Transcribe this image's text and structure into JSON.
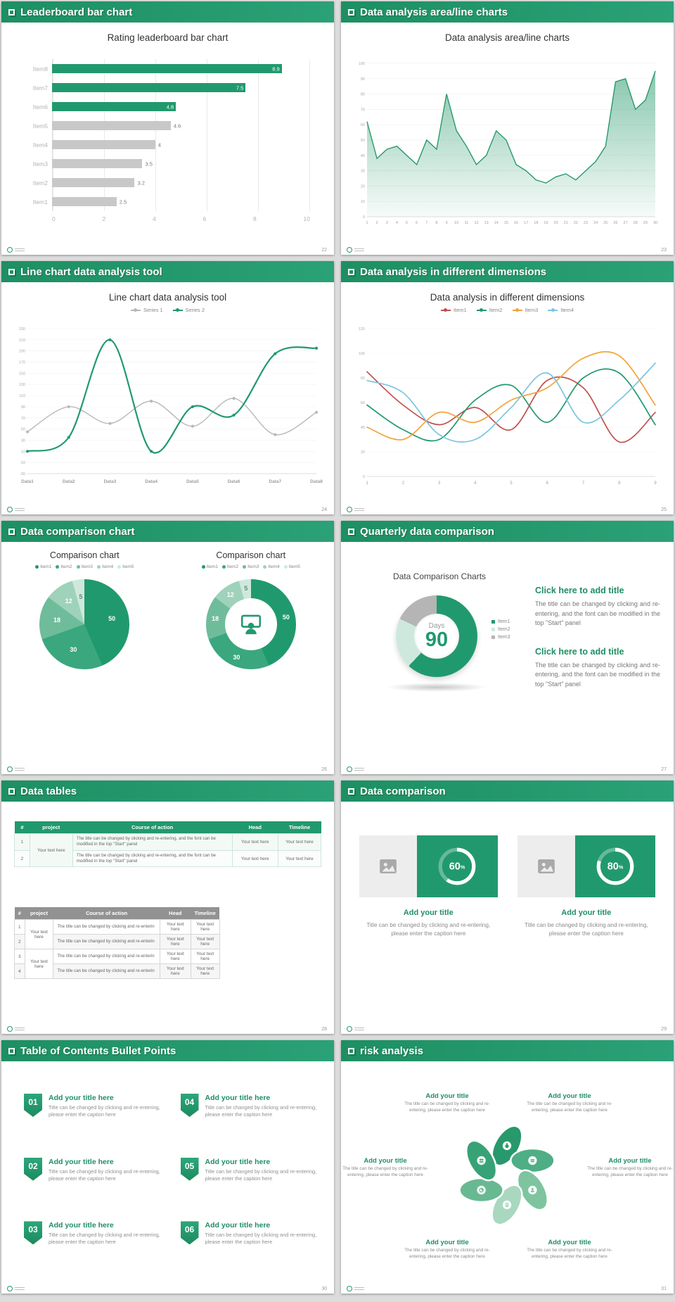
{
  "slides": {
    "s1": {
      "header": "Leaderboard bar chart",
      "page": "22"
    },
    "s2": {
      "header": "Data analysis area/line charts",
      "page": "23"
    },
    "s3": {
      "header": "Line chart data analysis tool",
      "page": "24"
    },
    "s4": {
      "header": "Data analysis in different dimensions",
      "page": "25"
    },
    "s5": {
      "header": "Data comparison chart",
      "page": "26"
    },
    "s6": {
      "header": "Quarterly data comparison",
      "page": "27",
      "chart_title": "Data Comparison Charts",
      "blocks": [
        {
          "title": "Click here to add title",
          "body": "The title can be changed by clicking and re-entering, and the font can be modified in the top \"Start\" panel"
        },
        {
          "title": "Click here to add title",
          "body": "The title can be changed by clicking and re-entering, and the font can be modified in the top \"Start\" panel"
        }
      ]
    },
    "s7": {
      "header": "Data tables",
      "page": "28",
      "table1": {
        "headers": [
          "#",
          "project",
          "Course of action",
          "Head",
          "Timeline"
        ],
        "groups": [
          {
            "project": "Your text here",
            "rows": [
              {
                "num": "1",
                "course": "The title can be changed by clicking and re-entering, and the font can be modified in the top \"Start\" panel",
                "head": "Your text here",
                "timeline": "Your text here"
              },
              {
                "num": "2",
                "course": "The title can be changed by clicking and re-entering, and the font can be modified in the top \"Start\" panel",
                "head": "Your text here",
                "timeline": "Your text here"
              }
            ]
          }
        ]
      },
      "table2": {
        "headers": [
          "#",
          "project",
          "Course of action",
          "Head",
          "Timeline"
        ],
        "groups": [
          {
            "project": "Your text here",
            "rows": [
              {
                "num": "1",
                "course": "The title can be changed by clicking and re-enterin",
                "head": "Your text here",
                "timeline": "Your text here"
              },
              {
                "num": "2",
                "course": "The title can be changed by clicking and re-enterin",
                "head": "Your text here",
                "timeline": "Your text here"
              }
            ]
          },
          {
            "project": "Your text here",
            "rows": [
              {
                "num": "3",
                "course": "The title can be changed by clicking and re-enterin",
                "head": "Your text here",
                "timeline": "Your text here"
              },
              {
                "num": "4",
                "course": "The title can be changed by clicking and re-enterin",
                "head": "Your text here",
                "timeline": "Your text here"
              }
            ]
          }
        ]
      }
    },
    "s8": {
      "header": "Data comparison",
      "page": "29",
      "cards": [
        {
          "title": "Add your title",
          "caption": "Title can be changed by clicking and re-entering, please enter the caption here"
        },
        {
          "title": "Add your title",
          "caption": "Title can be changed by clicking and re-entering, please enter the caption here"
        }
      ]
    },
    "s9": {
      "header": "Table of Contents Bullet Points",
      "page": "30",
      "items": [
        {
          "num": "01",
          "title": "Add your title here",
          "caption": "Title can be changed by clicking and re-entering, please enter the caption here"
        },
        {
          "num": "02",
          "title": "Add your title here",
          "caption": "Title can be changed by clicking and re-entering, please enter the caption here"
        },
        {
          "num": "03",
          "title": "Add your title here",
          "caption": "Title can be changed by clicking and re-entering, please enter the caption here"
        },
        {
          "num": "04",
          "title": "Add your title here",
          "caption": "Title can be changed by clicking and re-entering, please enter the caption here"
        },
        {
          "num": "05",
          "title": "Add your title here",
          "caption": "Title can be changed by clicking and re-entering, please enter the caption here"
        },
        {
          "num": "06",
          "title": "Add your title here",
          "caption": "Title can be changed by clicking and re-entering, please enter the caption here"
        }
      ]
    },
    "s10": {
      "header": "risk analysis",
      "page": "31",
      "petal_colors": [
        "#27996c",
        "#4fae85",
        "#7ec49f",
        "#a9d8bf",
        "#68b992",
        "#38a277"
      ],
      "items": [
        {
          "title": "Add your title",
          "caption": "The title can be changed by clicking and re-entering, please enter the caption here"
        },
        {
          "title": "Add your title",
          "caption": "The title can be changed by clicking and re-entering, please enter the caption here"
        },
        {
          "title": "Add your title",
          "caption": "The title can be changed by clicking and re-entering, please enter the caption here"
        },
        {
          "title": "Add your title",
          "caption": "The title can be changed by clicking and re-entering, please enter the caption here"
        },
        {
          "title": "Add your title",
          "caption": "The title can be changed by clicking and re-entering, please enter the caption here"
        },
        {
          "title": "Add your title",
          "caption": "The title can be changed by clicking and re-entering, please enter the caption here"
        }
      ]
    }
  },
  "chart_data": [
    {
      "id": "leaderboard",
      "type": "bar",
      "orientation": "horizontal",
      "title": "Rating leaderboard bar chart",
      "categories": [
        "Item8",
        "Item7",
        "Item6",
        "Item5",
        "Item4",
        "Item3",
        "Item2",
        "Item1"
      ],
      "values": [
        8.9,
        7.5,
        4.8,
        4.6,
        4,
        3.5,
        3.2,
        2.5
      ],
      "highlight_count": 3,
      "highlight_color": "#21996e",
      "bar_color": "#c8c8c8",
      "xticks": [
        0,
        2,
        4,
        6,
        8,
        10
      ],
      "xlim": [
        0,
        10
      ]
    },
    {
      "id": "area",
      "type": "area",
      "title": "Data analysis area/line charts",
      "x": [
        1,
        2,
        3,
        4,
        5,
        6,
        7,
        8,
        9,
        10,
        11,
        12,
        13,
        14,
        15,
        16,
        17,
        18,
        19,
        20,
        21,
        22,
        23,
        24,
        25,
        26,
        27,
        28,
        29,
        30
      ],
      "values": [
        62,
        38,
        44,
        46,
        40,
        34,
        50,
        44,
        80,
        56,
        46,
        34,
        40,
        56,
        50,
        34,
        30,
        24,
        22,
        26,
        28,
        24,
        30,
        36,
        46,
        88,
        90,
        70,
        76,
        95
      ],
      "yticks": [
        100,
        90,
        80,
        70,
        60,
        50,
        40,
        30,
        20,
        10,
        0
      ],
      "ylim": [
        0,
        100
      ],
      "color": "#27996c"
    },
    {
      "id": "line-tool",
      "type": "line",
      "title": "Line chart data analysis tool",
      "categories": [
        "Data1",
        "Data2",
        "Data3",
        "Data4",
        "Data5",
        "Data6",
        "Data7",
        "Data8"
      ],
      "series": [
        {
          "name": "Series 1",
          "color": "#b8b8b8",
          "values": [
            45,
            90,
            60,
            100,
            55,
            105,
            40,
            80
          ]
        },
        {
          "name": "Series 2",
          "color": "#21996e",
          "values": [
            10,
            35,
            210,
            10,
            90,
            75,
            185,
            195
          ]
        }
      ],
      "yticks": [
        230,
        210,
        190,
        170,
        150,
        130,
        110,
        90,
        70,
        50,
        30,
        10,
        -10,
        -30
      ],
      "ylim": [
        -30,
        230
      ]
    },
    {
      "id": "dimensions",
      "type": "line",
      "title": "Data analysis in different dimensions",
      "x": [
        1,
        2,
        3,
        4,
        5,
        6,
        7,
        8,
        9
      ],
      "series": [
        {
          "name": "Item1",
          "color": "#c0504d",
          "values": [
            85,
            58,
            42,
            56,
            38,
            78,
            72,
            28,
            52
          ]
        },
        {
          "name": "Item2",
          "color": "#21996e",
          "values": [
            58,
            38,
            30,
            62,
            74,
            44,
            80,
            84,
            42
          ]
        },
        {
          "name": "Item3",
          "color": "#f2a33c",
          "values": [
            40,
            30,
            52,
            44,
            62,
            72,
            96,
            98,
            58
          ]
        },
        {
          "name": "Item4",
          "color": "#7cc5e0",
          "values": [
            78,
            68,
            34,
            30,
            56,
            84,
            44,
            62,
            92
          ]
        }
      ],
      "yticks": [
        120,
        100,
        80,
        60,
        40,
        20,
        0
      ],
      "ylim": [
        0,
        120
      ]
    },
    {
      "id": "comparison-pie",
      "type": "pie",
      "title": "Comparison chart",
      "labels": [
        "Item1",
        "Item2",
        "Item3",
        "Item4",
        "Item5"
      ],
      "values": [
        50,
        30,
        18,
        12,
        5
      ],
      "colors": [
        "#21996e",
        "#3aa77f",
        "#6fbc9b",
        "#9fd2ba",
        "#cfe8dd"
      ]
    },
    {
      "id": "comparison-donut",
      "type": "donut",
      "title": "Comparison chart",
      "labels": [
        "Item1",
        "Item2",
        "Item3",
        "Item4",
        "Item5"
      ],
      "values": [
        50,
        30,
        18,
        12,
        5
      ],
      "colors": [
        "#21996e",
        "#3aa77f",
        "#6fbc9b",
        "#9fd2ba",
        "#cfe8dd"
      ]
    },
    {
      "id": "days-donut",
      "type": "donut",
      "center_label": "Days",
      "center_value": "90",
      "labels": [
        "Item1",
        "Item2",
        "Item3"
      ],
      "values": [
        62,
        20,
        18
      ],
      "colors": [
        "#21996e",
        "#cfe8dd",
        "#b5b5b5"
      ]
    },
    {
      "id": "gauge-60",
      "type": "gauge",
      "value": 60,
      "unit": "%"
    },
    {
      "id": "gauge-80",
      "type": "gauge",
      "value": 80,
      "unit": "%"
    }
  ]
}
